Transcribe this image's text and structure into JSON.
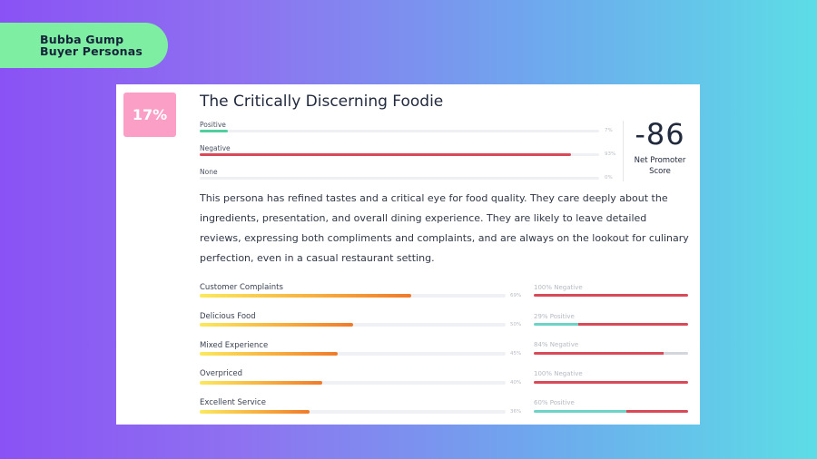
{
  "header": {
    "line1": "Bubba Gump",
    "line2": "Buyer Personas"
  },
  "persona": {
    "share": "17%",
    "title": "The Critically Discerning Foodie",
    "description": "This persona has refined tastes and a critical eye for food quality. They care deeply about the ingredients, presentation, and overall dining experience. They are likely to leave detailed reviews, expressing both compliments and complaints, and are always on the lookout for culinary perfection, even in a casual restaurant setting."
  },
  "sentiment": [
    {
      "label": "Positive",
      "pct_text": "7%",
      "value": 0.07,
      "color": "#4fcfa0"
    },
    {
      "label": "Negative",
      "pct_text": "93%",
      "value": 0.93,
      "color": "#d94a58"
    },
    {
      "label": "None",
      "pct_text": "0%",
      "value": 0.0,
      "color": "#d3d6dc"
    }
  ],
  "nps": {
    "score": "-86",
    "label_line1": "Net Promoter",
    "label_line2": "Score"
  },
  "topics": [
    {
      "label": "Customer Complaints",
      "pct_text": "69%",
      "value": 0.69,
      "sentiment_text": "100% Negative",
      "pos": 0.0,
      "neg": 1.0,
      "none": 0.0
    },
    {
      "label": "Delicious Food",
      "pct_text": "50%",
      "value": 0.5,
      "sentiment_text": "29% Positive",
      "pos": 0.29,
      "neg": 0.71,
      "none": 0.0
    },
    {
      "label": "Mixed Experience",
      "pct_text": "45%",
      "value": 0.45,
      "sentiment_text": "84% Negative",
      "pos": 0.0,
      "neg": 0.84,
      "none": 0.16
    },
    {
      "label": "Overpriced",
      "pct_text": "40%",
      "value": 0.4,
      "sentiment_text": "100% Negative",
      "pos": 0.0,
      "neg": 1.0,
      "none": 0.0
    },
    {
      "label": "Excellent Service",
      "pct_text": "36%",
      "value": 0.36,
      "sentiment_text": "60% Positive",
      "pos": 0.6,
      "neg": 0.4,
      "none": 0.0
    }
  ]
}
